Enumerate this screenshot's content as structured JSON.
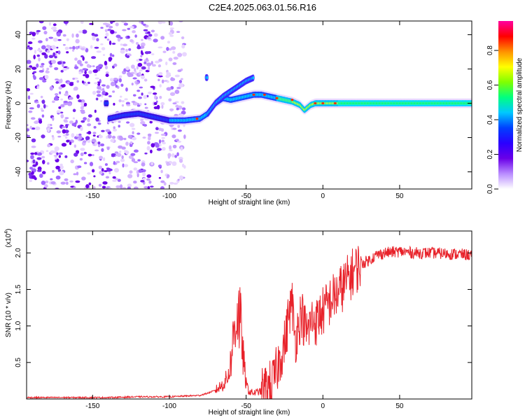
{
  "title": "C2E4.2025.063.01.56.R16",
  "chart_data": [
    {
      "type": "heatmap",
      "xlabel": "Height of straight line (km)",
      "ylabel": "Frequency (Hz)",
      "xlim": [
        -193,
        97
      ],
      "ylim": [
        -50,
        48
      ],
      "x_ticks": [
        -150,
        -100,
        -50,
        0,
        50
      ],
      "y_ticks": [
        -40,
        -20,
        0,
        20,
        40
      ],
      "grid": false,
      "colorbar": {
        "label": "Normalized spectral amplitude",
        "range": [
          0.0,
          0.97
        ],
        "ticks": [
          0.0,
          0.2,
          0.4,
          0.6,
          0.8
        ],
        "colors": [
          "#ffffff",
          "#b98cff",
          "#6a00e8",
          "#2a00ff",
          "#0040ff",
          "#00c8ff",
          "#00ff80",
          "#80ff00",
          "#ffff00",
          "#ff9000",
          "#ff0000",
          "#ff00a0"
        ]
      },
      "ridge_x": [
        -140,
        -130,
        -120,
        -110,
        -100,
        -90,
        -80,
        -75,
        -70,
        -65,
        -60,
        -55,
        -50,
        -45,
        -40,
        -35,
        -30,
        -25,
        -20,
        -15,
        -12,
        -8,
        -5,
        0,
        10,
        20,
        40,
        60,
        80,
        95
      ],
      "ridge_freq": [
        -9,
        -7,
        -6,
        -8,
        -10,
        -10,
        -9,
        -6,
        0,
        3,
        2,
        3,
        4,
        5,
        5,
        4,
        3,
        2,
        1,
        -1,
        -4,
        -1,
        0,
        0,
        0,
        0,
        0,
        0,
        0,
        0
      ],
      "upper_branch_x": [
        -75,
        -70,
        -65,
        -60,
        -55,
        -50,
        -45
      ],
      "upper_branch_freq": [
        -6,
        0,
        4,
        7,
        10,
        13,
        15
      ]
    },
    {
      "type": "line",
      "xlabel": "Height of straight line (km)",
      "ylabel": "SNR (10 * v/v)",
      "y_multiplier": "(x10^4)",
      "multiplier_base": "(x10",
      "multiplier_exp": "4",
      "multiplier_end": ")",
      "xlim": [
        -193,
        97
      ],
      "ylim": [
        0,
        2.3
      ],
      "x_ticks": [
        -150,
        -100,
        -50,
        0,
        50
      ],
      "y_ticks": [
        0.5,
        1.0,
        1.5,
        2.0
      ],
      "y_tick_labels": [
        "0.5",
        "1.0",
        "1.5",
        "2.0"
      ],
      "color": "#e8222a",
      "series": [
        {
          "x": [
            -193,
            -180,
            -160,
            -140,
            -120,
            -100,
            -90,
            -80,
            -75,
            -70,
            -65,
            -62,
            -60,
            -58,
            -56,
            -54,
            -52,
            -50,
            -48,
            -45,
            -42,
            -40,
            -38,
            -35,
            -32,
            -30,
            -28,
            -26,
            -25,
            -24,
            -22,
            -20,
            -18,
            -16,
            -14,
            -12,
            -10,
            -8,
            -6,
            -4,
            -2,
            0,
            2,
            5,
            10,
            15,
            20,
            25,
            30,
            35,
            40,
            50,
            60,
            70,
            80,
            90,
            97
          ],
          "y": [
            0.02,
            0.02,
            0.02,
            0.02,
            0.03,
            0.03,
            0.04,
            0.05,
            0.08,
            0.12,
            0.2,
            0.3,
            0.5,
            0.9,
            1.2,
            1.1,
            0.6,
            0.2,
            0.1,
            0.08,
            0.1,
            0.1,
            0.12,
            0.18,
            0.25,
            0.4,
            0.55,
            0.7,
            0.75,
            0.85,
            1.2,
            1.3,
            0.8,
            1.0,
            1.2,
            1.0,
            0.9,
            1.05,
            1.1,
            1.05,
            1.15,
            1.2,
            1.25,
            1.35,
            1.45,
            1.6,
            1.75,
            1.85,
            1.9,
            1.97,
            2.0,
            2.02,
            2.0,
            2.0,
            1.99,
            1.98,
            1.97
          ]
        }
      ]
    }
  ]
}
